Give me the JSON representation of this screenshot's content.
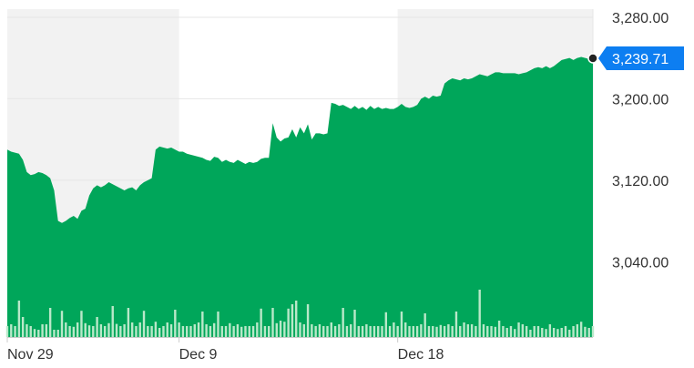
{
  "chart_data": {
    "type": "area",
    "x_tick_labels": [
      "Nov 29",
      "Dec 9",
      "Dec 18"
    ],
    "y_tick_labels": [
      "3,280.00",
      "3,200.00",
      "3,120.00",
      "3,040.00"
    ],
    "y_ticks": [
      3280,
      3200,
      3120,
      3040
    ],
    "ylim": [
      2966,
      3288
    ],
    "last_price": 3239.71,
    "last_price_label": "3,239.71",
    "grid": true,
    "colors": {
      "area_fill": "#00A65A",
      "volume_bar": "#B9E8C9",
      "band_shade": "#F2F2F2",
      "price_badge": "#0D7EF1",
      "marker": "#222222"
    },
    "x_index_range": [
      0,
      150
    ],
    "x_tick_index": [
      0,
      44,
      100
    ],
    "shaded_bands": [
      [
        0,
        44
      ],
      [
        100,
        150
      ]
    ],
    "price": [
      3150,
      3148,
      3147,
      3146,
      3140,
      3128,
      3125,
      3126,
      3128,
      3127,
      3125,
      3122,
      3110,
      3080,
      3078,
      3080,
      3083,
      3085,
      3082,
      3090,
      3092,
      3105,
      3112,
      3115,
      3113,
      3115,
      3118,
      3116,
      3114,
      3112,
      3110,
      3112,
      3113,
      3110,
      3115,
      3118,
      3120,
      3122,
      3150,
      3153,
      3152,
      3151,
      3152,
      3150,
      3148,
      3148,
      3146,
      3145,
      3144,
      3143,
      3142,
      3140,
      3139,
      3143,
      3142,
      3138,
      3140,
      3138,
      3137,
      3140,
      3138,
      3136,
      3138,
      3137,
      3138,
      3141,
      3142,
      3142,
      3176,
      3162,
      3158,
      3161,
      3162,
      3170,
      3162,
      3172,
      3166,
      3175,
      3160,
      3166,
      3166,
      3165,
      3166,
      3196,
      3195,
      3193,
      3194,
      3192,
      3190,
      3193,
      3190,
      3192,
      3189,
      3193,
      3190,
      3192,
      3190,
      3191,
      3190,
      3190,
      3192,
      3195,
      3192,
      3191,
      3192,
      3194,
      3200,
      3202,
      3200,
      3203,
      3202,
      3203,
      3215,
      3218,
      3220,
      3219,
      3218,
      3220,
      3219,
      3220,
      3222,
      3224,
      3223,
      3222,
      3224,
      3226,
      3226,
      3225,
      3225,
      3225,
      3225,
      3224,
      3225,
      3226,
      3228,
      3230,
      3231,
      3230,
      3232,
      3230,
      3232,
      3235,
      3238,
      3239,
      3240,
      3238,
      3240,
      3241,
      3240,
      3239,
      3239.71
    ],
    "volume": [
      0.3,
      0.35,
      0.3,
      1.0,
      0.55,
      0.35,
      0.3,
      0.22,
      0.2,
      0.35,
      0.35,
      0.8,
      0.2,
      0.2,
      0.72,
      0.4,
      0.3,
      0.28,
      0.4,
      0.72,
      0.38,
      0.32,
      0.3,
      0.55,
      0.35,
      0.3,
      0.38,
      0.85,
      0.36,
      0.3,
      0.35,
      0.8,
      0.4,
      0.3,
      0.4,
      0.72,
      0.3,
      0.3,
      0.42,
      0.25,
      0.3,
      0.4,
      0.35,
      0.75,
      0.4,
      0.3,
      0.3,
      0.3,
      0.35,
      0.4,
      0.7,
      0.35,
      0.3,
      0.38,
      0.7,
      0.3,
      0.3,
      0.38,
      0.3,
      0.35,
      0.28,
      0.3,
      0.3,
      0.3,
      0.4,
      0.78,
      0.3,
      0.3,
      0.8,
      0.38,
      0.45,
      0.42,
      0.78,
      0.9,
      1.0,
      0.4,
      0.35,
      0.9,
      0.35,
      0.3,
      0.35,
      0.3,
      0.3,
      0.4,
      0.3,
      0.35,
      0.8,
      0.3,
      0.35,
      0.75,
      0.3,
      0.3,
      0.35,
      0.3,
      0.3,
      0.3,
      0.3,
      0.68,
      0.3,
      0.4,
      0.3,
      0.7,
      0.4,
      0.3,
      0.3,
      0.3,
      0.35,
      0.65,
      0.3,
      0.3,
      0.28,
      0.33,
      0.3,
      0.35,
      0.3,
      0.7,
      0.3,
      0.4,
      0.35,
      0.35,
      0.3,
      1.3,
      0.35,
      0.3,
      0.3,
      0.28,
      0.45,
      0.3,
      0.25,
      0.3,
      0.22,
      0.4,
      0.35,
      0.3,
      0.2,
      0.3,
      0.3,
      0.25,
      0.22,
      0.35,
      0.25,
      0.22,
      0.25,
      0.3,
      0.2,
      0.3,
      0.35,
      0.42,
      0.28,
      0.25,
      0.3
    ]
  }
}
